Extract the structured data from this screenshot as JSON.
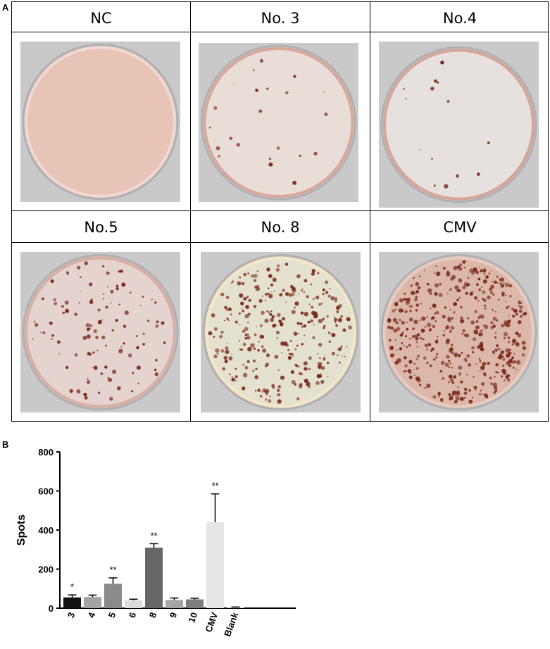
{
  "panel_labels": {
    "a": "A",
    "b": "B"
  },
  "wells": [
    {
      "title": "NC",
      "spots": 0,
      "tint": "#e8c4b6",
      "rim": "#f2d9cf"
    },
    {
      "title": "No. 3",
      "spots": 22,
      "tint": "#e9ddd8",
      "rim": "#d9a79a"
    },
    {
      "title": "No.4",
      "spots": 14,
      "tint": "#e6e1de",
      "rim": "#d6a597"
    },
    {
      "title": "No.5",
      "spots": 110,
      "tint": "#e4d3cf",
      "rim": "#d9aea3"
    },
    {
      "title": "No. 8",
      "spots": 300,
      "tint": "#e5e1cf",
      "rim": "#f1e8c6"
    },
    {
      "title": "CMV",
      "spots": 430,
      "tint": "#dcb8aa",
      "rim": "#e9cabd"
    }
  ],
  "chart_data": {
    "type": "bar",
    "categories": [
      "3",
      "4",
      "5",
      "6",
      "8",
      "9",
      "10",
      "CMV",
      "Blank"
    ],
    "values": [
      55,
      57,
      125,
      40,
      310,
      42,
      45,
      440,
      3
    ],
    "errors": [
      13,
      10,
      30,
      6,
      20,
      10,
      6,
      145,
      3
    ],
    "significance": [
      "*",
      "",
      "**",
      "",
      "**",
      "",
      "",
      "**",
      ""
    ],
    "bar_colors": [
      "#111111",
      "#a3a3a3",
      "#8a8a8a",
      "#dcdcdc",
      "#666666",
      "#a6a6a6",
      "#7d7d7d",
      "#e6e6e6",
      "#f2f2f2"
    ],
    "ylabel": "Spots",
    "ylim": [
      0,
      800
    ],
    "yticks": [
      "0",
      "200",
      "400",
      "600",
      "800"
    ],
    "xlabel": "",
    "title": ""
  }
}
